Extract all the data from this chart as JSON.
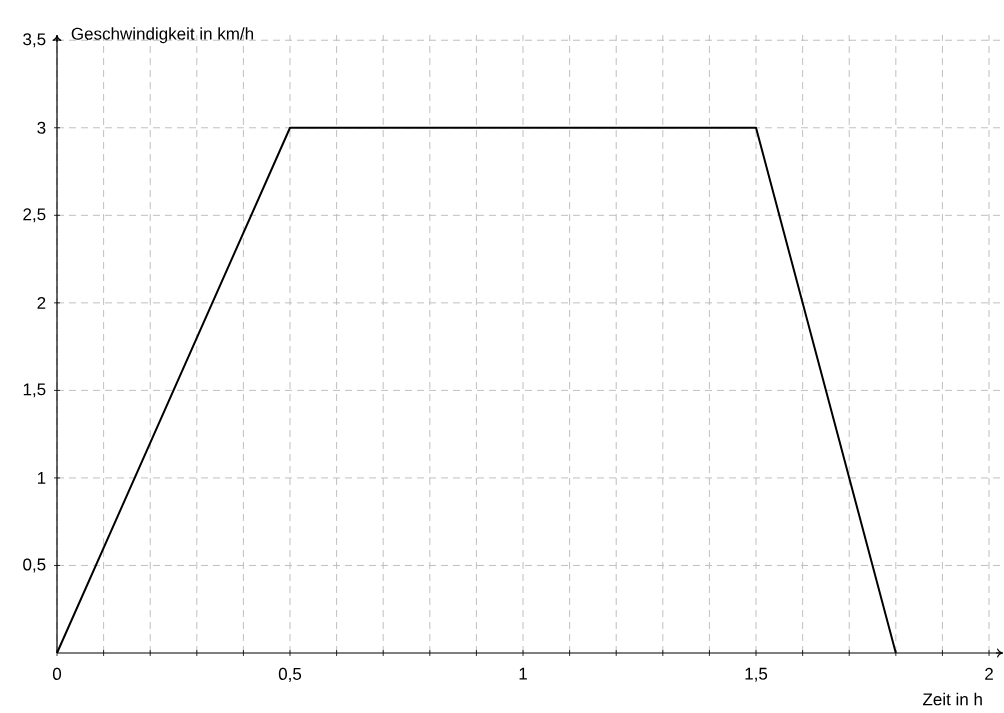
{
  "chart_data": {
    "type": "line",
    "xlabel": "Zeit in h",
    "ylabel": "Geschwindigkeit in km/h",
    "x": [
      0,
      0.5,
      1.5,
      1.8
    ],
    "series": [
      {
        "color": "#000000",
        "values": [
          0,
          3,
          3,
          0
        ]
      }
    ],
    "xlim": [
      0,
      2.03
    ],
    "ylim": [
      0,
      3.53
    ],
    "xticks": [
      {
        "value": 0,
        "label": "0"
      },
      {
        "value": 0.1,
        "label": null
      },
      {
        "value": 0.2,
        "label": null
      },
      {
        "value": 0.3,
        "label": null
      },
      {
        "value": 0.4,
        "label": null
      },
      {
        "value": 0.5,
        "label": "0,5"
      },
      {
        "value": 0.6,
        "label": null
      },
      {
        "value": 0.7,
        "label": null
      },
      {
        "value": 0.8,
        "label": null
      },
      {
        "value": 0.9,
        "label": null
      },
      {
        "value": 1,
        "label": "1"
      },
      {
        "value": 1.1,
        "label": null
      },
      {
        "value": 1.2,
        "label": null
      },
      {
        "value": 1.3,
        "label": null
      },
      {
        "value": 1.4,
        "label": null
      },
      {
        "value": 1.5,
        "label": "1,5"
      },
      {
        "value": 1.6,
        "label": null
      },
      {
        "value": 1.7,
        "label": null
      },
      {
        "value": 1.8,
        "label": null
      },
      {
        "value": 1.9,
        "label": null
      },
      {
        "value": 2,
        "label": "2"
      }
    ],
    "yticks": [
      {
        "value": 0.5,
        "label": "0,5"
      },
      {
        "value": 1,
        "label": "1"
      },
      {
        "value": 1.5,
        "label": "1,5"
      },
      {
        "value": 2,
        "label": "2"
      },
      {
        "value": 2.5,
        "label": "2,5"
      },
      {
        "value": 3,
        "label": "3"
      },
      {
        "value": 3.5,
        "label": "3,5"
      }
    ],
    "grid": true,
    "marker": "none",
    "line_style": "solid"
  }
}
